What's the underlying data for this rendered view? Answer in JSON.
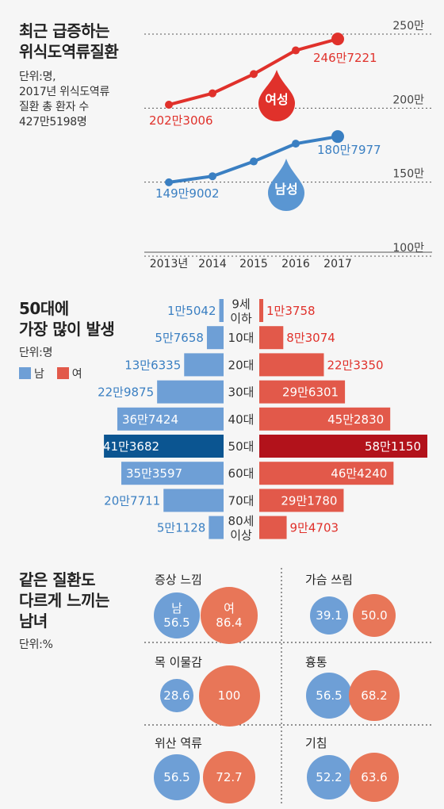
{
  "section1": {
    "title_lines": [
      "최근 급증하는",
      "위식도역류질환"
    ],
    "sub_lines": [
      "단위:명,",
      "2017년 위식도역류",
      "질환 총 환자 수",
      "427만5198명"
    ],
    "female_tag": "여성",
    "male_tag": "남성",
    "start_labels": {
      "female": "202만3006",
      "male": "149만9002"
    },
    "end_labels": {
      "female": "246만7221",
      "male": "180만7977"
    }
  },
  "section2": {
    "title_lines": [
      "50대에",
      "가장 많이 발생"
    ],
    "unit": "단위:명",
    "legend_male": "남",
    "legend_female": "여"
  },
  "section3": {
    "title_lines": [
      "같은 질환도",
      "다르게 느끼는",
      "남녀"
    ],
    "unit": "단위:%",
    "panels": [
      {
        "title": "증상 느낌",
        "male_label": "남",
        "female_label": "여",
        "male": "56.5",
        "female": "86.4"
      },
      {
        "title": "가슴 쓰림",
        "male_label": "",
        "female_label": "",
        "male": "39.1",
        "female": "50.0"
      },
      {
        "title": "목 이물감",
        "male_label": "",
        "female_label": "",
        "male": "28.6",
        "female": "100"
      },
      {
        "title": "흉통",
        "male_label": "",
        "female_label": "",
        "male": "56.5",
        "female": "68.2"
      },
      {
        "title": "위산 역류",
        "male_label": "",
        "female_label": "",
        "male": "56.5",
        "female": "72.7"
      },
      {
        "title": "기침",
        "male_label": "",
        "female_label": "",
        "male": "52.2",
        "female": "63.6"
      }
    ]
  },
  "colors": {
    "female": "#e0312b",
    "male": "#3a7fc2",
    "bar_male": "#6e9fd6",
    "bar_female": "#e2594a",
    "bar_male_peak": "#0b5591",
    "bar_female_peak": "#b2121b",
    "circle_male": "#6e9fd6",
    "circle_female": "#e87658"
  },
  "chart_data": [
    {
      "type": "line",
      "x": [
        "2013년",
        "2014",
        "2015",
        "2016",
        "2017"
      ],
      "y_ticks": [
        "250만",
        "200만",
        "150만",
        "100만"
      ],
      "ylim": [
        1000000,
        2500000
      ],
      "series": [
        {
          "name": "여성",
          "values": [
            2023006,
            2100000,
            2230000,
            2390000,
            2467221
          ]
        },
        {
          "name": "남성",
          "values": [
            1499002,
            1540000,
            1640000,
            1760000,
            1807977
          ]
        }
      ]
    },
    {
      "type": "bar",
      "categories": [
        [
          "9세",
          "이하"
        ],
        [
          "10대"
        ],
        [
          "20대"
        ],
        [
          "30대"
        ],
        [
          "40대"
        ],
        [
          "50대"
        ],
        [
          "60대"
        ],
        [
          "70대"
        ],
        [
          "80세",
          "이상"
        ]
      ],
      "series": [
        {
          "name": "남",
          "values": [
            15042,
            57658,
            136335,
            229875,
            367424,
            413682,
            353597,
            207711,
            51128
          ],
          "labels": [
            "1만5042",
            "5만7658",
            "13만6335",
            "22만9875",
            "36만7424",
            "41만3682",
            "35만3597",
            "20만7711",
            "5만1128"
          ]
        },
        {
          "name": "여",
          "values": [
            13758,
            83074,
            223350,
            296301,
            452830,
            581150,
            464240,
            291780,
            94703
          ],
          "labels": [
            "1만3758",
            "8만3074",
            "22만3350",
            "29만6301",
            "45만2830",
            "58만1150",
            "46만4240",
            "29만1780",
            "9만4703"
          ]
        }
      ]
    }
  ]
}
